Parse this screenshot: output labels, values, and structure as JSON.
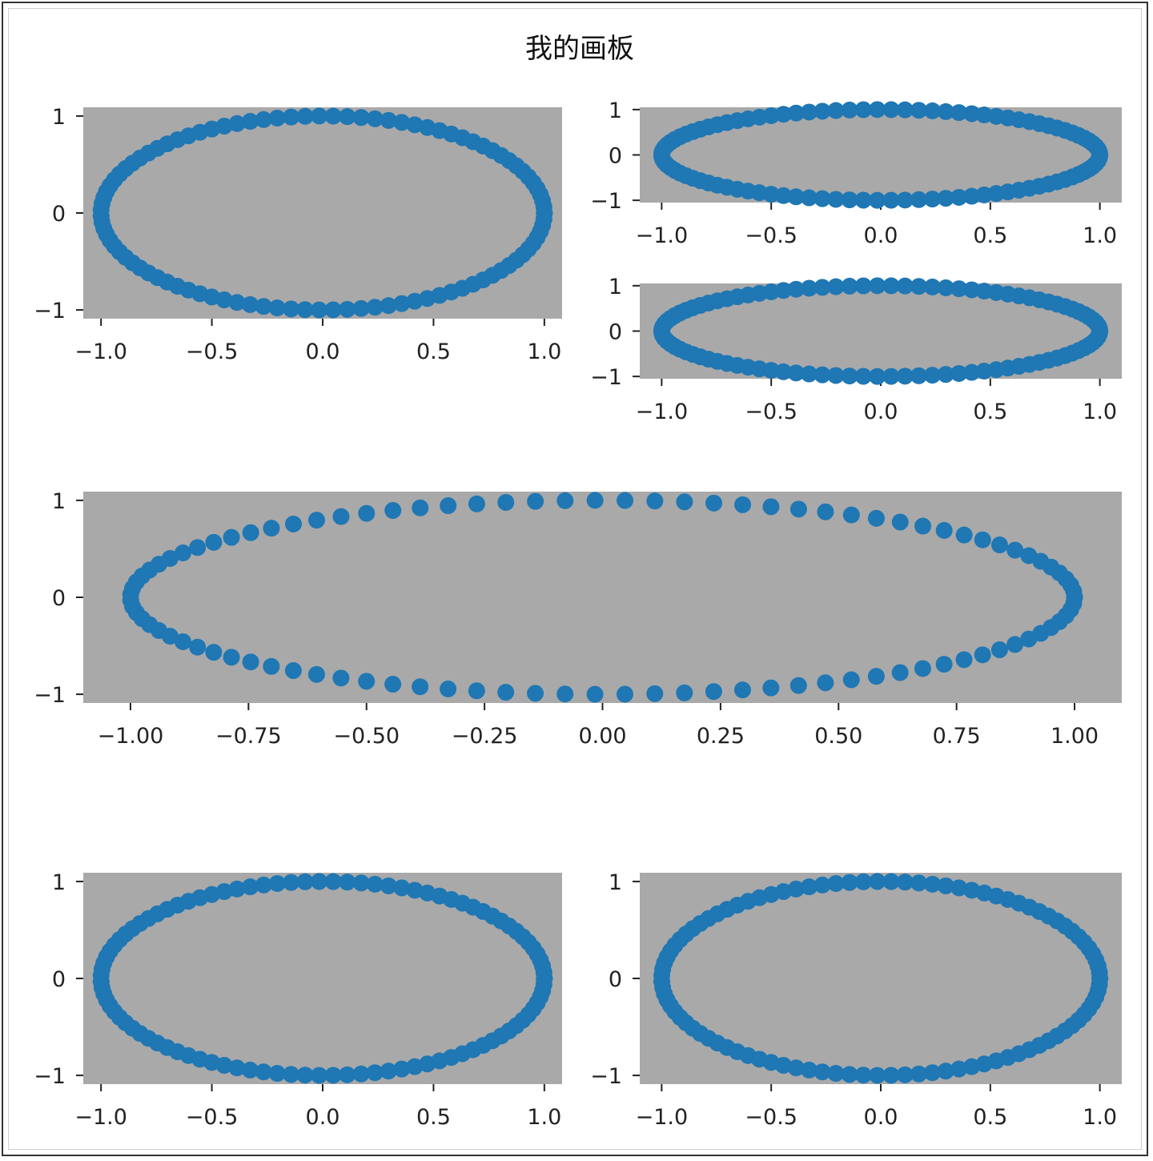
{
  "figure": {
    "title": "我的画板",
    "axes_facecolor": "#a9a9a9",
    "marker_color": "#1f77b4",
    "text_color": "#222222"
  },
  "chart_data": [
    {
      "type": "scatter",
      "position": "top-left",
      "xlim": [
        -1.08,
        1.08
      ],
      "ylim": [
        -1.09,
        1.09
      ],
      "xticks": [
        -1.0,
        -0.5,
        0.0,
        0.5,
        1.0
      ],
      "xtick_labels": [
        "−1.0",
        "−0.5",
        "0.0",
        "0.5",
        "1.0"
      ],
      "yticks": [
        1,
        0,
        -1
      ],
      "ytick_labels": [
        "1",
        "0",
        "−1"
      ],
      "series": [
        {
          "x_expr": "cos(t)",
          "y_expr": "sin(t)",
          "t_range": [
            0,
            6.283
          ],
          "n_points": 100
        }
      ]
    },
    {
      "type": "scatter",
      "position": "top-right-upper",
      "xlim": [
        -1.1,
        1.1
      ],
      "ylim": [
        -1.05,
        1.05
      ],
      "xticks": [
        -1.0,
        -0.5,
        0.0,
        0.5,
        1.0
      ],
      "xtick_labels": [
        "−1.0",
        "−0.5",
        "0.0",
        "0.5",
        "1.0"
      ],
      "yticks": [
        1,
        0,
        -1
      ],
      "ytick_labels": [
        "1",
        "0",
        "−1"
      ],
      "series": [
        {
          "x_expr": "cos(t)",
          "y_expr": "sin(t)",
          "t_range": [
            0,
            6.283
          ],
          "n_points": 100
        }
      ]
    },
    {
      "type": "scatter",
      "position": "top-right-lower",
      "xlim": [
        -1.1,
        1.1
      ],
      "ylim": [
        -1.05,
        1.05
      ],
      "xticks": [
        -1.0,
        -0.5,
        0.0,
        0.5,
        1.0
      ],
      "xtick_labels": [
        "−1.0",
        "−0.5",
        "0.0",
        "0.5",
        "1.0"
      ],
      "yticks": [
        1,
        0,
        -1
      ],
      "ytick_labels": [
        "1",
        "0",
        "−1"
      ],
      "series": [
        {
          "x_expr": "cos(t)",
          "y_expr": "sin(t)",
          "t_range": [
            0,
            6.283
          ],
          "n_points": 100
        }
      ]
    },
    {
      "type": "scatter",
      "position": "middle",
      "xlim": [
        -1.1,
        1.1
      ],
      "ylim": [
        -1.09,
        1.09
      ],
      "xticks": [
        -1.0,
        -0.75,
        -0.5,
        -0.25,
        0.0,
        0.25,
        0.5,
        0.75,
        1.0
      ],
      "xtick_labels": [
        "−1.00",
        "−0.75",
        "−0.50",
        "−0.25",
        "0.00",
        "0.25",
        "0.50",
        "0.75",
        "1.00"
      ],
      "yticks": [
        1,
        0,
        -1
      ],
      "ytick_labels": [
        "1",
        "0",
        "−1"
      ],
      "series": [
        {
          "x_expr": "cos(t)",
          "y_expr": "sin(t)",
          "t_range": [
            0,
            6.283
          ],
          "n_points": 100
        }
      ]
    },
    {
      "type": "scatter",
      "position": "bottom-left",
      "xlim": [
        -1.08,
        1.08
      ],
      "ylim": [
        -1.09,
        1.09
      ],
      "xticks": [
        -1.0,
        -0.5,
        0.0,
        0.5,
        1.0
      ],
      "xtick_labels": [
        "−1.0",
        "−0.5",
        "0.0",
        "0.5",
        "1.0"
      ],
      "yticks": [
        1,
        0,
        -1
      ],
      "ytick_labels": [
        "1",
        "0",
        "−1"
      ],
      "series": [
        {
          "x_expr": "cos(t)",
          "y_expr": "sin(t)",
          "t_range": [
            0,
            6.283
          ],
          "n_points": 100
        }
      ]
    },
    {
      "type": "scatter",
      "position": "bottom-right",
      "xlim": [
        -1.1,
        1.1
      ],
      "ylim": [
        -1.09,
        1.09
      ],
      "xticks": [
        -1.0,
        -0.5,
        0.0,
        0.5,
        1.0
      ],
      "xtick_labels": [
        "−1.0",
        "−0.5",
        "0.0",
        "0.5",
        "1.0"
      ],
      "yticks": [
        1,
        0,
        -1
      ],
      "ytick_labels": [
        "1",
        "0",
        "−1"
      ],
      "series": [
        {
          "x_expr": "cos(t)",
          "y_expr": "sin(t)",
          "t_range": [
            0,
            6.283
          ],
          "n_points": 100
        }
      ]
    }
  ]
}
